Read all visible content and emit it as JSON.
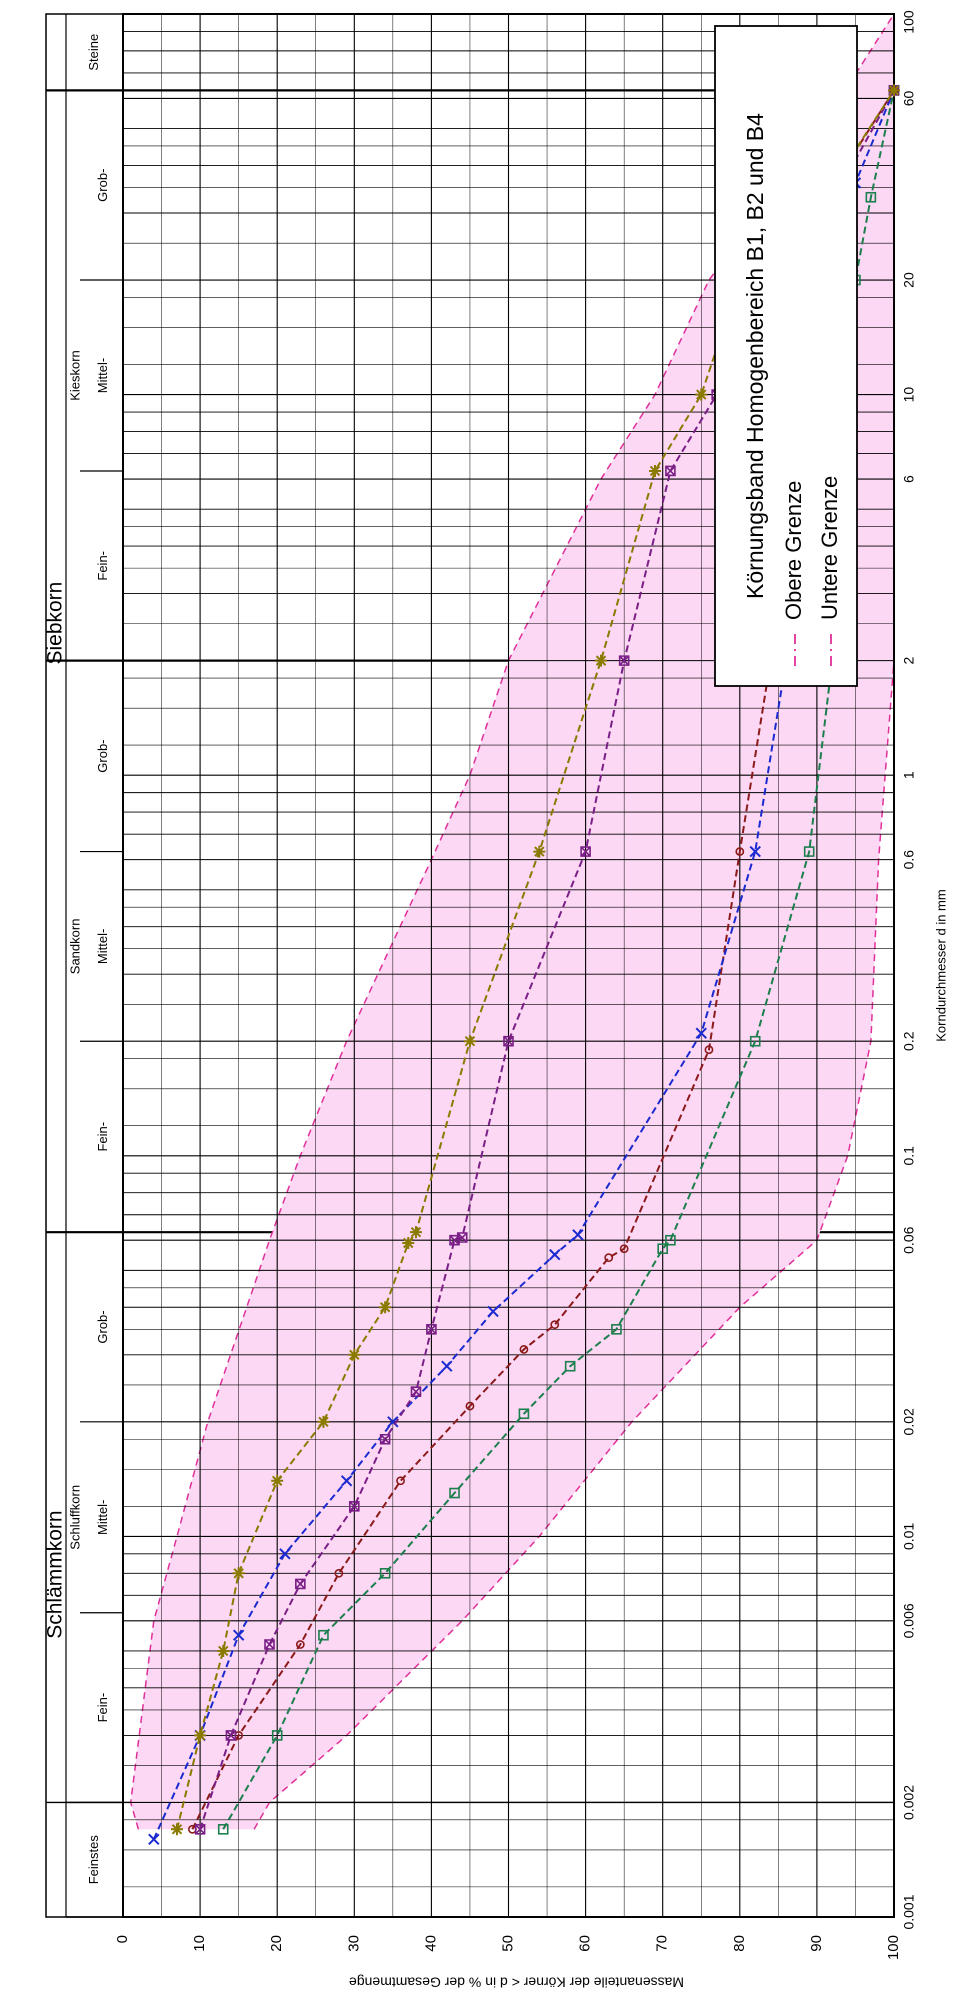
{
  "chart_data": {
    "type": "line",
    "title": "Körnungsband Homogenbereich B1, B2 und B4",
    "xlabel": "Korndurchmesser d in mm",
    "ylabel": "Massenanteile der Körner < d in % der Gesamtmenge",
    "x_scale": "log",
    "xlim": [
      0.001,
      100
    ],
    "ylim": [
      0,
      100
    ],
    "x_tick_labels": [
      "0.001",
      "0.002",
      "0.006",
      "0.01",
      "0.02",
      "0.06",
      "0.1",
      "0.2",
      "0.6",
      "1",
      "2",
      "6",
      "10",
      "20",
      "60",
      "100"
    ],
    "x_ticks": [
      0.001,
      0.002,
      0.006,
      0.01,
      0.02,
      0.06,
      0.1,
      0.2,
      0.6,
      1,
      2,
      6,
      10,
      20,
      60,
      100
    ],
    "y_ticks": [
      0,
      10,
      20,
      30,
      40,
      50,
      60,
      70,
      80,
      90,
      100
    ],
    "grid_minor_x": [
      0.003,
      0.004,
      0.005,
      0.007,
      0.008,
      0.009,
      0.03,
      0.04,
      0.05,
      0.07,
      0.08,
      0.09,
      0.3,
      0.4,
      0.5,
      0.7,
      0.8,
      0.9,
      3,
      4,
      5,
      7,
      8,
      9,
      30,
      40,
      50,
      70,
      80,
      90
    ],
    "grid_sub_x": [
      0.0012,
      0.0015,
      0.0018,
      0.0025,
      0.0035,
      0.0045,
      0.012,
      0.015,
      0.018,
      0.025,
      0.035,
      0.045,
      0.12,
      0.15,
      0.18,
      0.25,
      0.35,
      0.45,
      1.2,
      1.5,
      1.8,
      2.5,
      3.5,
      4.5,
      12,
      15,
      18,
      25,
      35,
      45
    ],
    "grid_sub_y": [
      5,
      15,
      25,
      35,
      45,
      55,
      65,
      75,
      85,
      95
    ],
    "classification": {
      "groups": [
        {
          "label": "Schlämmkorn",
          "from": 0.001,
          "to": 0.063
        },
        {
          "label": "Siebkorn",
          "from": 0.063,
          "to": 100
        }
      ],
      "zones": [
        {
          "label": "Feinstes",
          "from": 0.001,
          "to": 0.002
        },
        {
          "label": "Schluffkorn",
          "from": 0.002,
          "to": 0.063
        },
        {
          "label": "Sandkorn",
          "from": 0.063,
          "to": 2
        },
        {
          "label": "Kieskorn",
          "from": 2,
          "to": 63
        },
        {
          "label": "Steine",
          "from": 63,
          "to": 100
        }
      ],
      "subzones": [
        {
          "label": "Fein-",
          "from": 0.002,
          "to": 0.0063
        },
        {
          "label": "Mittel-",
          "from": 0.0063,
          "to": 0.02
        },
        {
          "label": "Grob-",
          "from": 0.02,
          "to": 0.063
        },
        {
          "label": "Fein-",
          "from": 0.063,
          "to": 0.2
        },
        {
          "label": "Mittel-",
          "from": 0.2,
          "to": 0.63
        },
        {
          "label": "Grob-",
          "from": 0.63,
          "to": 2
        },
        {
          "label": "Fein-",
          "from": 2,
          "to": 6.3
        },
        {
          "label": "Mittel-",
          "from": 6.3,
          "to": 20
        },
        {
          "label": "Grob-",
          "from": 20,
          "to": 63
        }
      ]
    },
    "band": {
      "upper": {
        "name": "Obere Grenze",
        "color": "#e0309a",
        "x": [
          0.0017,
          0.002,
          0.003,
          0.006,
          0.01,
          0.02,
          0.04,
          0.06,
          0.1,
          0.2,
          0.6,
          2,
          6,
          20,
          60,
          100
        ],
        "y": [
          17,
          19,
          29,
          44,
          54,
          66,
          80,
          90,
          94,
          97,
          98,
          100,
          100,
          100,
          100,
          100
        ]
      },
      "lower": {
        "name": "Untere Grenze",
        "color": "#e0309a",
        "x": [
          0.0017,
          0.002,
          0.006,
          0.01,
          0.02,
          0.06,
          0.1,
          0.2,
          0.6,
          1,
          2,
          6,
          10,
          20,
          40,
          60,
          100
        ],
        "y": [
          2,
          1,
          4,
          7,
          11,
          19,
          23,
          29,
          40,
          45,
          50,
          62,
          69,
          76,
          87,
          93,
          100
        ]
      },
      "fill": "#fcd8f4"
    },
    "series": [
      {
        "color": "#1c7f4c",
        "marker": "square",
        "x": [
          0.0017,
          0.003,
          0.0055,
          0.008,
          0.013,
          0.021,
          0.028,
          0.035,
          0.057,
          0.06,
          0.2,
          0.63,
          2,
          6.3,
          10,
          20,
          33,
          63
        ],
        "y": [
          13,
          20,
          26,
          34,
          43,
          52,
          58,
          64,
          70,
          71,
          82,
          89,
          92,
          94,
          94,
          95,
          97,
          100
        ]
      },
      {
        "color": "#8b1a1a",
        "marker": "circle",
        "x": [
          0.0017,
          0.003,
          0.0052,
          0.008,
          0.014,
          0.022,
          0.031,
          0.036,
          0.054,
          0.057,
          0.19,
          0.63,
          2,
          6.3,
          10,
          20,
          35,
          63
        ],
        "y": [
          9,
          15,
          23,
          28,
          36,
          45,
          52,
          56,
          63,
          65,
          76,
          80,
          84,
          86,
          88,
          89,
          92,
          100
        ]
      },
      {
        "color": "#1a2ad0",
        "marker": "x",
        "x": [
          0.0016,
          0.003,
          0.0055,
          0.009,
          0.014,
          0.02,
          0.028,
          0.039,
          0.055,
          0.062,
          0.21,
          0.63,
          2,
          6.4,
          10,
          20,
          36,
          63
        ],
        "y": [
          4,
          10,
          15,
          21,
          29,
          35,
          42,
          48,
          56,
          59,
          75,
          82,
          86,
          90,
          90,
          92,
          95,
          100
        ]
      },
      {
        "color": "#7a1f86",
        "marker": "square-x",
        "x": [
          0.0017,
          0.003,
          0.0052,
          0.0075,
          0.012,
          0.018,
          0.024,
          0.035,
          0.06,
          0.061,
          0.2,
          0.63,
          2,
          6.3,
          10,
          20,
          35,
          63
        ],
        "y": [
          10,
          14,
          19,
          23,
          30,
          34,
          38,
          40,
          43,
          44,
          50,
          60,
          65,
          71,
          77,
          83,
          93,
          100
        ]
      },
      {
        "color": "#8a7a00",
        "marker": "star",
        "x": [
          0.0017,
          0.003,
          0.005,
          0.008,
          0.014,
          0.02,
          0.03,
          0.04,
          0.059,
          0.063,
          0.2,
          0.63,
          2,
          6.3,
          10,
          20,
          33,
          63
        ],
        "y": [
          7,
          10,
          13,
          15,
          20,
          26,
          30,
          34,
          37,
          38,
          45,
          54,
          62,
          69,
          75,
          80,
          91,
          100
        ]
      }
    ],
    "legend": {
      "placement": "top-right",
      "title": "Körnungsband Homogenbereich B1, B2 und B4",
      "entries": [
        {
          "label": "Obere Grenze",
          "color": "#e0309a",
          "style": "dash-dot"
        },
        {
          "label": "Untere Grenze",
          "color": "#e0309a",
          "style": "dash-dot"
        }
      ]
    }
  }
}
